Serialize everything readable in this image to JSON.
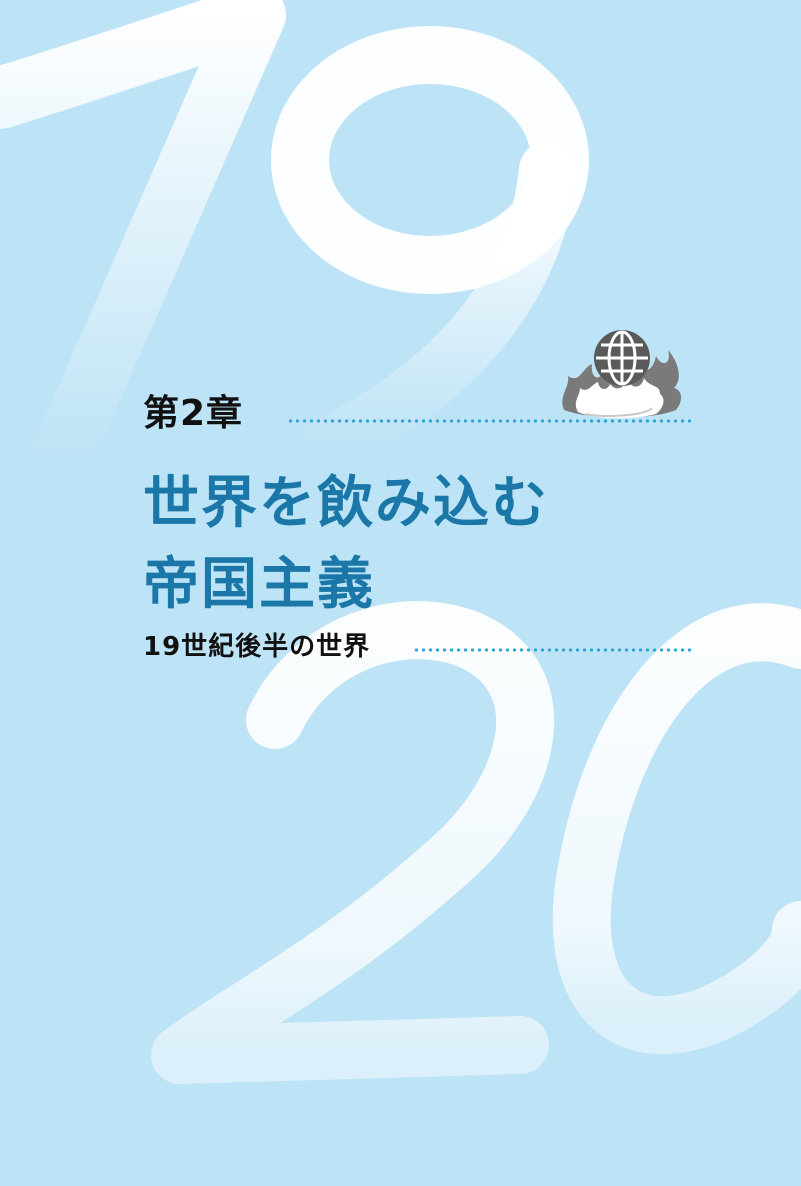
{
  "chapter": {
    "label": "第2章",
    "title_line1": "世界を飲み込む",
    "title_line2": "帝国主義",
    "subtitle": "19世紀後半の世界"
  },
  "background_digits": {
    "top": "19",
    "bottom": "20"
  },
  "icon": "globe-on-fire-icon",
  "colors": {
    "background": "#bde3f6",
    "title": "#1b77a8",
    "text": "#111111",
    "dots": "#2ea3d8",
    "numeral": "#ffffff"
  }
}
